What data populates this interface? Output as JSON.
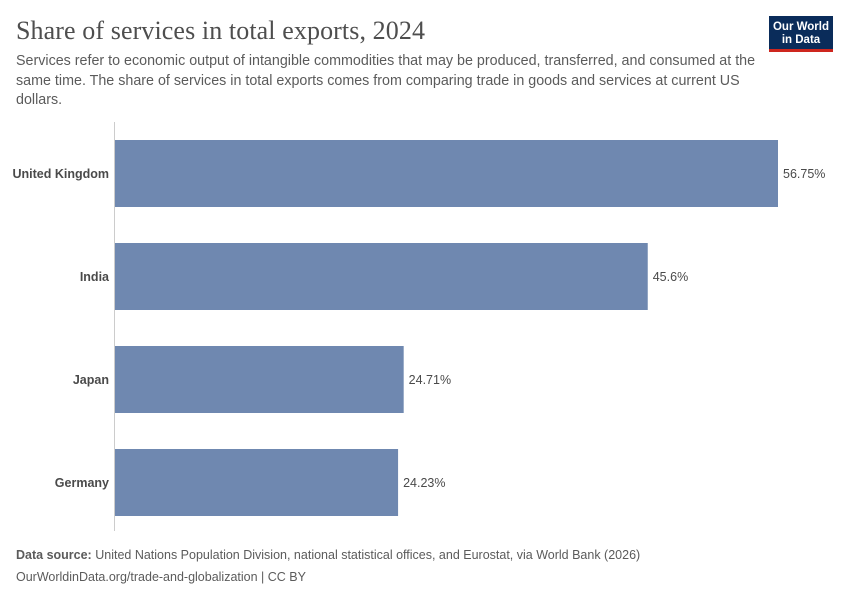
{
  "header": {
    "title": "Share of services in total exports, 2024",
    "subtitle": "Services refer to economic output of intangible commodities that may be produced, transferred, and consumed at the same time. The share of services in total exports comes from comparing trade in goods and services at current US dollars.",
    "logo_line1": "Our World",
    "logo_line2": "in Data"
  },
  "chart_data": {
    "type": "bar",
    "orientation": "horizontal",
    "title": "Share of services in total exports, 2024",
    "categories": [
      "United Kingdom",
      "India",
      "Japan",
      "Germany"
    ],
    "values": [
      56.75,
      45.6,
      24.71,
      24.23
    ],
    "value_labels": [
      "56.75%",
      "45.6%",
      "24.71%",
      "24.23%"
    ],
    "xlim": [
      0,
      56.75
    ],
    "xlabel": "",
    "ylabel": "",
    "grid": false,
    "bar_color": "#6f88b0"
  },
  "footer": {
    "source_label": "Data source:",
    "source_text": "United Nations Population Division, national statistical offices, and Eurostat, via World Bank (2026)",
    "url_text": "OurWorldinData.org/trade-and-globalization | CC BY"
  }
}
